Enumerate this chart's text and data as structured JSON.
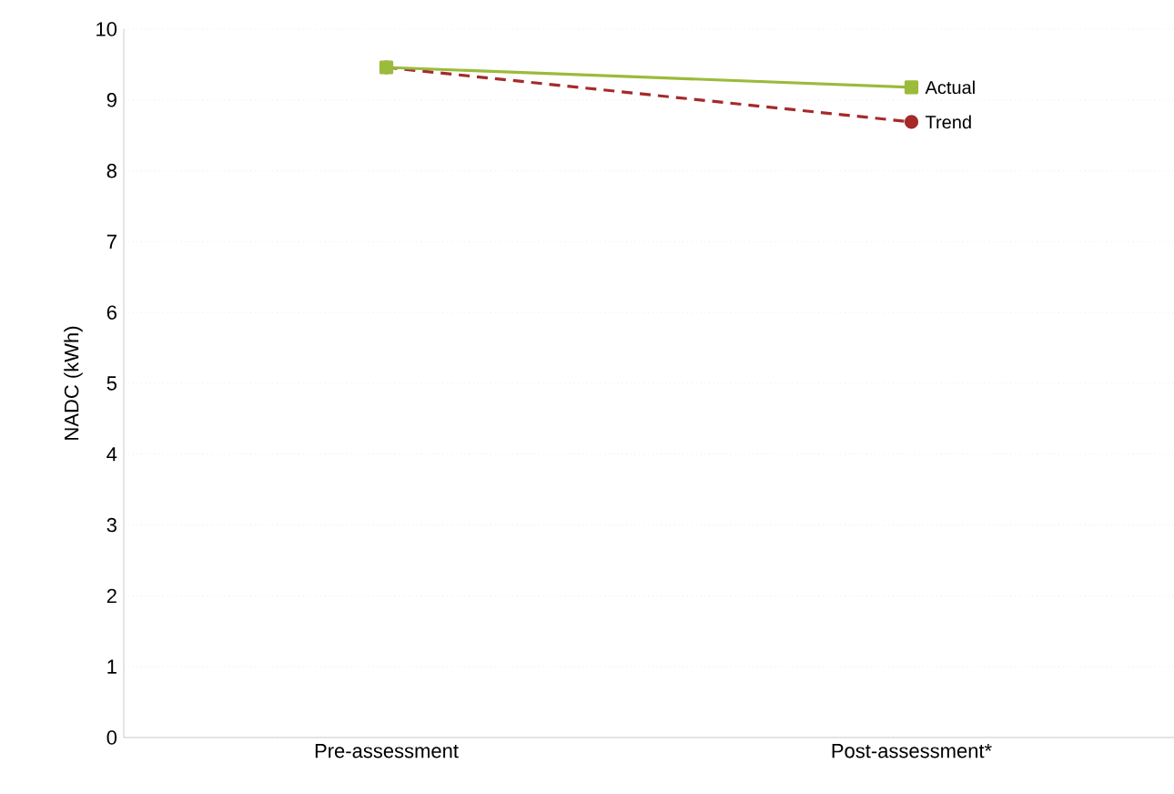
{
  "chart_data": {
    "type": "line",
    "ylabel": "NADC (kWh)",
    "categories": [
      "Pre-assessment",
      "Post-assessment*"
    ],
    "series": [
      {
        "name": "Actual",
        "color": "#9bbb3b",
        "values": [
          9.46,
          9.18
        ],
        "marker": "square",
        "line_style": "solid"
      },
      {
        "name": "Trend",
        "color": "#a52a2a",
        "values": [
          9.46,
          8.69
        ],
        "marker": "circle",
        "line_style": "dashed"
      }
    ],
    "ylim": [
      0,
      10
    ],
    "yticks": [
      0,
      1,
      2,
      3,
      4,
      5,
      6,
      7,
      8,
      9,
      10
    ],
    "grid": "y",
    "legend": false
  }
}
